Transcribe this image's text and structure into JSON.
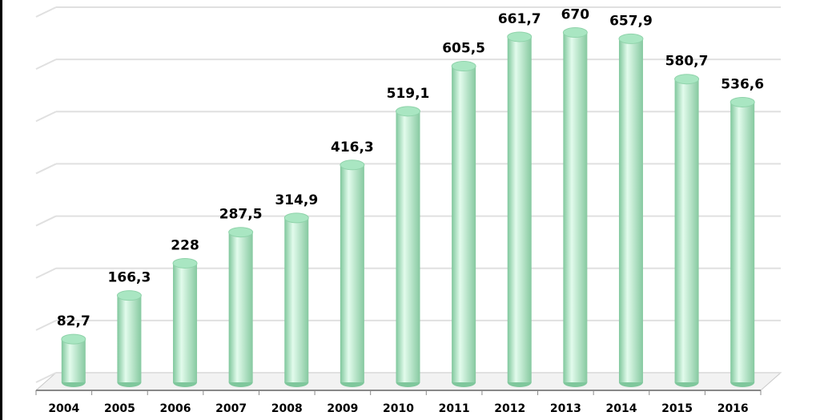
{
  "chart_data": {
    "type": "bar",
    "categories": [
      "2004",
      "2005",
      "2006",
      "2007",
      "2008",
      "2009",
      "2010",
      "2011",
      "2012",
      "2013",
      "2014",
      "2015",
      "2016"
    ],
    "values": [
      82.7,
      166.3,
      228,
      287.5,
      314.9,
      416.3,
      519.1,
      605.5,
      661.7,
      670,
      657.9,
      580.7,
      536.6
    ],
    "value_labels": [
      "82,7",
      "166,3",
      "228",
      "287,5",
      "314,9",
      "416,3",
      "519,1",
      "605,5",
      "661,7",
      "670",
      "657,9",
      "580,7",
      "536,6"
    ],
    "color": "#a9e6c2",
    "ylim": [
      0,
      700
    ],
    "yticks": [
      0,
      100,
      200,
      300,
      400,
      500,
      600,
      700
    ],
    "grid": true
  }
}
